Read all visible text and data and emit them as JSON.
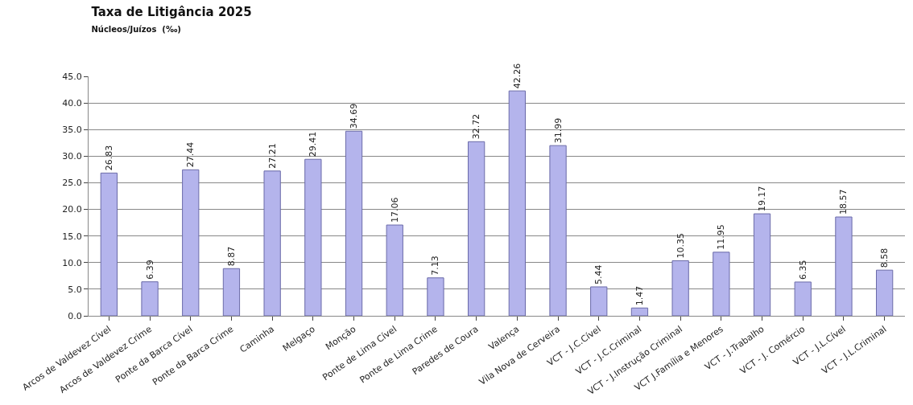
{
  "chart_data": {
    "type": "bar",
    "title": "Taxa de Litigância 2025",
    "subtitle": "Núcleos/Juízos  (‰)",
    "categories": [
      "Arcos de Valdevez Cível",
      "Arcos de Valdevez Crime",
      "Ponte da Barca Cível",
      "Ponte da Barca Crime",
      "Caminha",
      "Melgaço",
      "Monção",
      "Ponte de Lima Cível",
      "Ponte de Lima Crime",
      "Paredes de Coura",
      "Valença",
      "Vila Nova de Cerveira",
      "VCT - J.C.Cível",
      "VCT - J.C.Criminal",
      "VCT - J.Instrução Criminal",
      "VCT J.Família e Menores",
      "VCT - J.Trabalho",
      "VCT - J. Comércio",
      "VCT - J.L.Cível",
      "VCT - J.L.Criminal"
    ],
    "values": [
      26.83,
      6.39,
      27.44,
      8.87,
      27.21,
      29.41,
      34.69,
      17.06,
      7.13,
      32.72,
      42.26,
      31.99,
      5.44,
      1.47,
      10.35,
      11.95,
      19.17,
      6.35,
      18.57,
      8.58
    ],
    "color": "#b4b4ec",
    "data_labels": true,
    "grid": "y",
    "ylim": [
      0,
      45
    ],
    "yticks": [
      {
        "value": 0,
        "label": "0.0"
      },
      {
        "value": 5,
        "label": "5.0"
      },
      {
        "value": 10,
        "label": "10.0"
      },
      {
        "value": 15,
        "label": "15.0"
      },
      {
        "value": 20,
        "label": "20.0"
      },
      {
        "value": 25,
        "label": "25.0"
      },
      {
        "value": 30,
        "label": "30.0"
      },
      {
        "value": 35,
        "label": "35.0"
      },
      {
        "value": 40,
        "label": "40.0"
      },
      {
        "value": 45,
        "label": "45.0"
      }
    ]
  }
}
